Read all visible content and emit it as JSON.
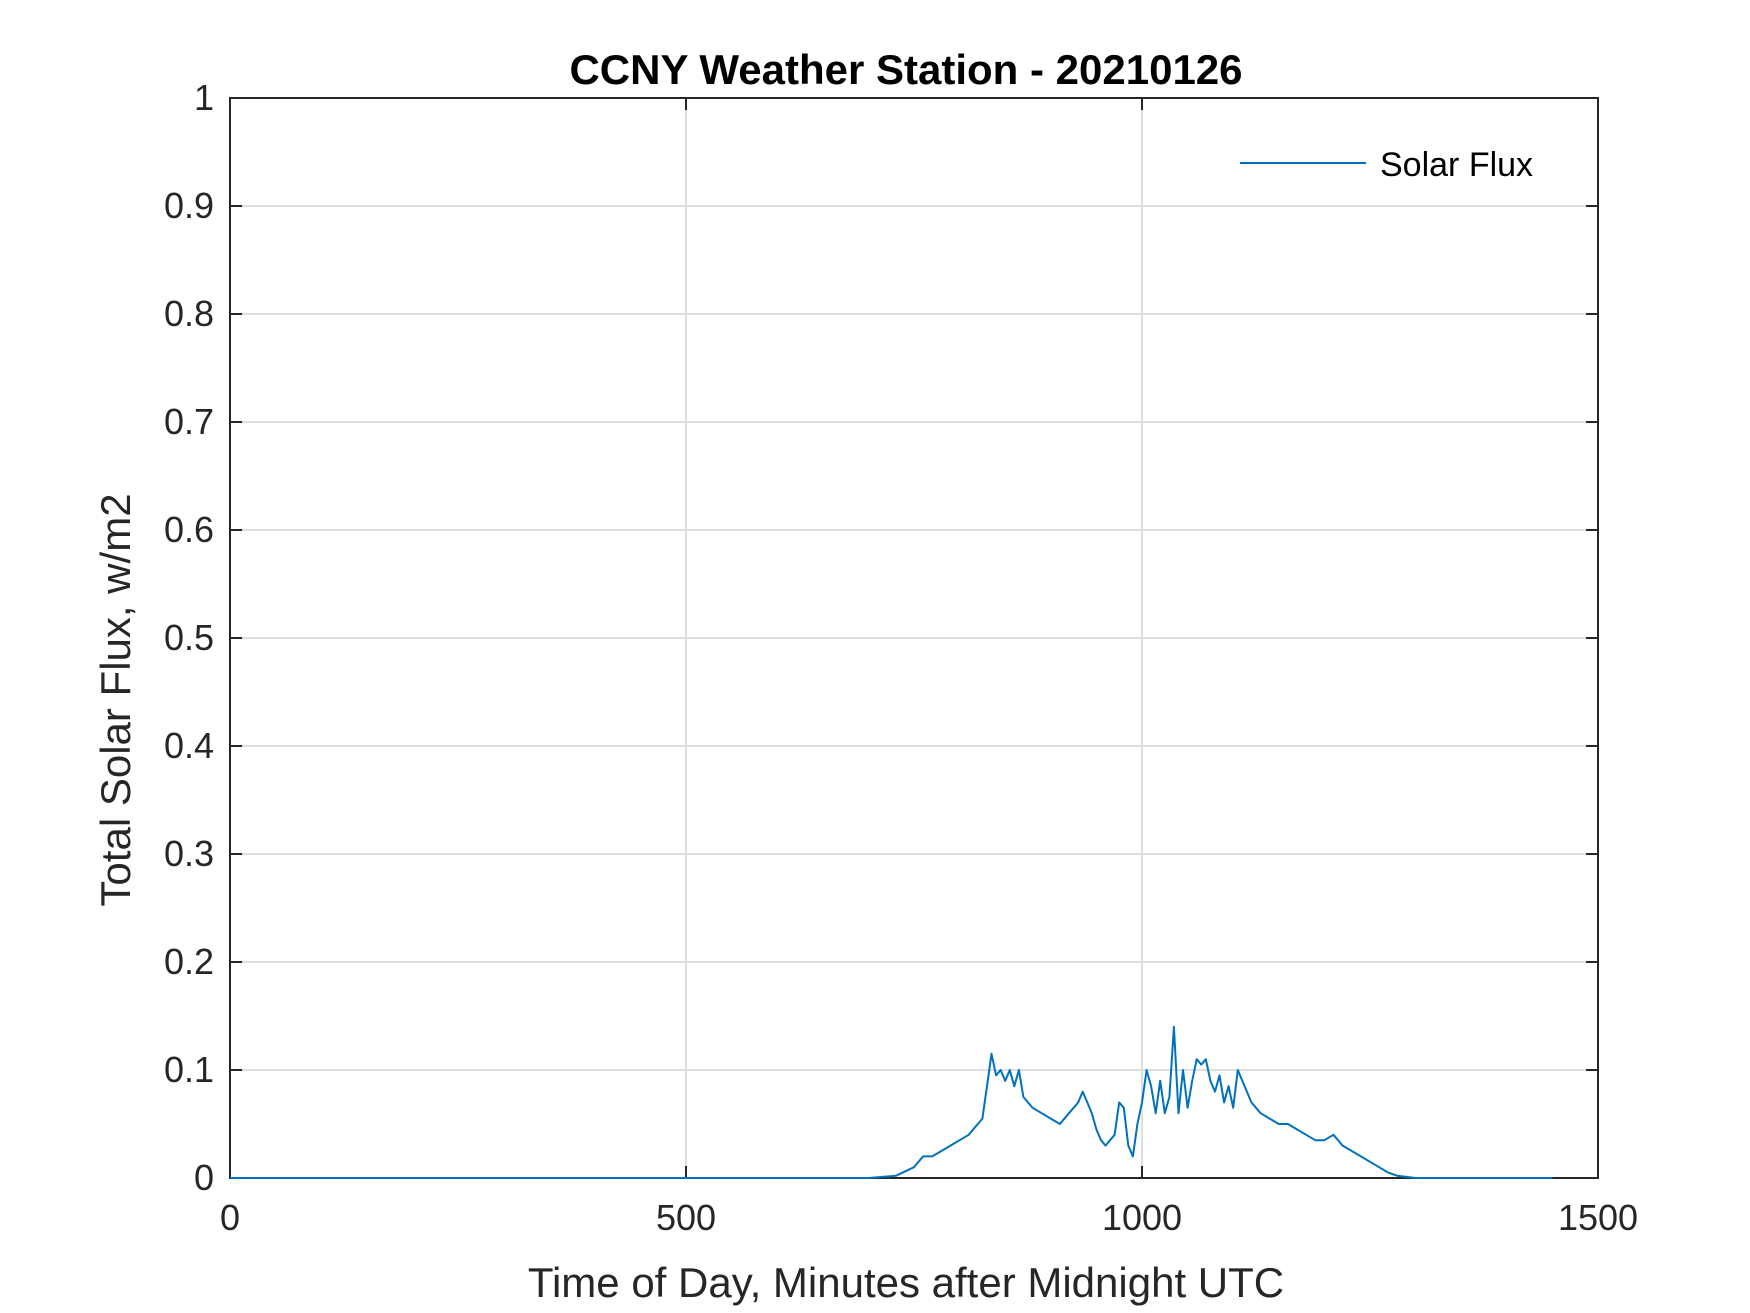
{
  "chart_data": {
    "type": "line",
    "title": "CCNY Weather Station - 20210126",
    "xlabel": "Time of Day, Minutes after Midnight UTC",
    "ylabel": "Total Solar Flux, w/m2",
    "xlim": [
      0,
      1500
    ],
    "ylim": [
      0,
      1
    ],
    "xticks": [
      0,
      500,
      1000,
      1500
    ],
    "xtick_labels": [
      "0",
      "500",
      "1000",
      "1500"
    ],
    "yticks": [
      0,
      0.1,
      0.2,
      0.3,
      0.4,
      0.5,
      0.6,
      0.7,
      0.8,
      0.9,
      1
    ],
    "ytick_labels": [
      "0",
      "0.1",
      "0.2",
      "0.3",
      "0.4",
      "0.5",
      "0.6",
      "0.7",
      "0.8",
      "0.9",
      "1"
    ],
    "grid": true,
    "legend_position": "top-right",
    "series": [
      {
        "name": "Solar Flux",
        "color": "#0072BD",
        "x": [
          0,
          700,
          730,
          750,
          760,
          770,
          780,
          790,
          800,
          810,
          820,
          825,
          830,
          835,
          840,
          845,
          850,
          855,
          860,
          865,
          870,
          875,
          880,
          890,
          900,
          910,
          920,
          925,
          930,
          935,
          940,
          945,
          950,
          955,
          960,
          965,
          970,
          975,
          980,
          985,
          990,
          995,
          1000,
          1005,
          1010,
          1015,
          1020,
          1025,
          1030,
          1035,
          1040,
          1045,
          1050,
          1055,
          1060,
          1065,
          1070,
          1075,
          1080,
          1085,
          1090,
          1095,
          1100,
          1105,
          1110,
          1115,
          1120,
          1130,
          1140,
          1150,
          1160,
          1170,
          1180,
          1190,
          1200,
          1210,
          1220,
          1230,
          1240,
          1250,
          1260,
          1270,
          1280,
          1290,
          1300,
          1320,
          1350,
          1450
        ],
        "values": [
          0,
          0,
          0.002,
          0.01,
          0.02,
          0.02,
          0.025,
          0.03,
          0.035,
          0.04,
          0.05,
          0.055,
          0.085,
          0.115,
          0.095,
          0.1,
          0.09,
          0.1,
          0.085,
          0.1,
          0.075,
          0.07,
          0.065,
          0.06,
          0.055,
          0.05,
          0.06,
          0.065,
          0.07,
          0.08,
          0.07,
          0.06,
          0.045,
          0.035,
          0.03,
          0.035,
          0.04,
          0.07,
          0.065,
          0.03,
          0.02,
          0.05,
          0.07,
          0.1,
          0.085,
          0.06,
          0.09,
          0.06,
          0.075,
          0.14,
          0.06,
          0.1,
          0.065,
          0.09,
          0.11,
          0.105,
          0.11,
          0.09,
          0.08,
          0.095,
          0.07,
          0.085,
          0.065,
          0.1,
          0.09,
          0.08,
          0.07,
          0.06,
          0.055,
          0.05,
          0.05,
          0.045,
          0.04,
          0.035,
          0.035,
          0.04,
          0.03,
          0.025,
          0.02,
          0.015,
          0.01,
          0.005,
          0.002,
          0.001,
          0,
          0,
          0,
          0
        ]
      }
    ]
  }
}
